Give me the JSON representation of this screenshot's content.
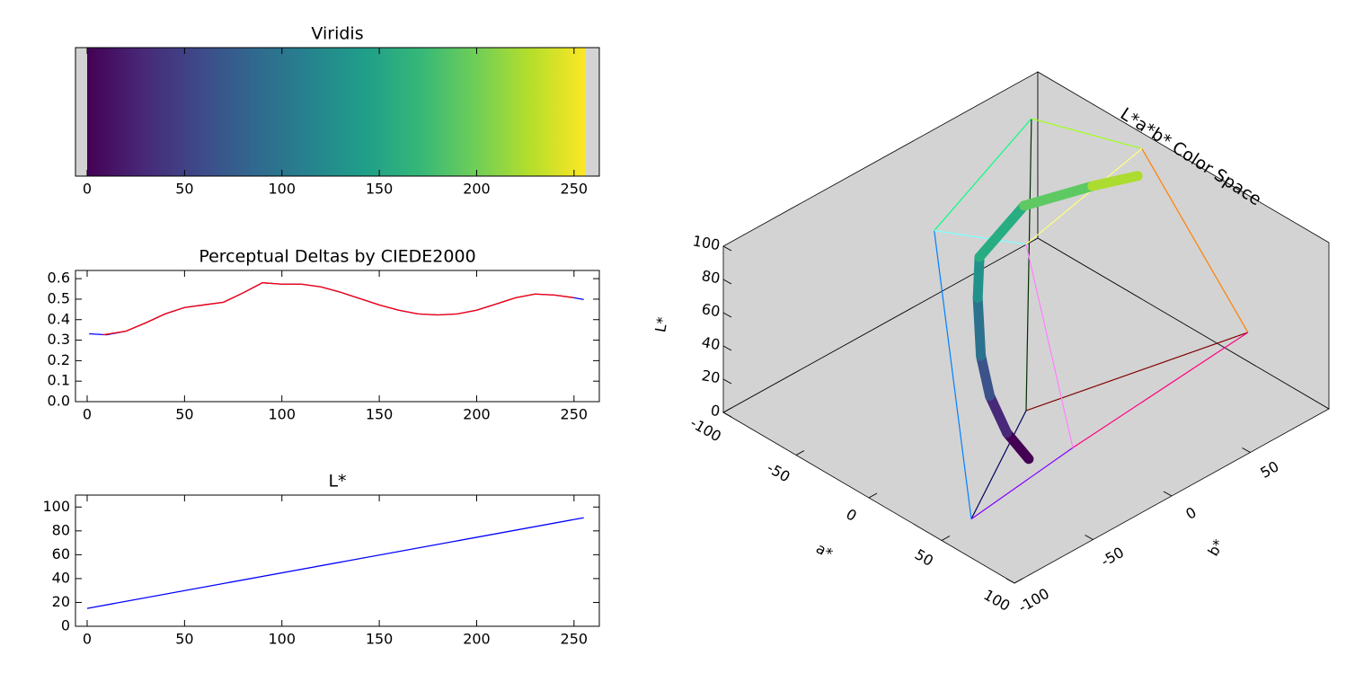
{
  "chart_data": [
    {
      "type": "colorbar",
      "title": "Viridis",
      "extent": [
        0,
        256
      ],
      "colors": [
        "#440154",
        "#482878",
        "#3e4989",
        "#31688e",
        "#26828e",
        "#1f9e89",
        "#35b779",
        "#6ece58",
        "#b5de2b",
        "#fde725"
      ],
      "xlim": [
        -6,
        263
      ],
      "xticks": [
        0,
        50,
        100,
        150,
        200,
        250
      ]
    },
    {
      "type": "line",
      "title": "Perceptual Deltas by CIEDE2000",
      "xlim": [
        -6,
        263
      ],
      "xticks": [
        0,
        50,
        100,
        150,
        200,
        250
      ],
      "ylim": [
        0,
        0.64
      ],
      "yticks": [
        {
          "value": 0,
          "label": "0.0"
        },
        0.1,
        0.2,
        0.3,
        0.4,
        0.5,
        0.6
      ],
      "series": [
        {
          "color": "#0000ff",
          "x": [
            1,
            10,
            20,
            30,
            40,
            50,
            60,
            70,
            80,
            90,
            100,
            110,
            120,
            130,
            140,
            150,
            160,
            170,
            180,
            190,
            200,
            210,
            220,
            230,
            240,
            250,
            255
          ],
          "values": [
            0.331,
            0.326,
            0.344,
            0.384,
            0.428,
            0.459,
            0.472,
            0.485,
            0.53,
            0.58,
            0.573,
            0.573,
            0.56,
            0.534,
            0.503,
            0.472,
            0.446,
            0.428,
            0.423,
            0.428,
            0.446,
            0.476,
            0.507,
            0.525,
            0.52,
            0.507,
            0.498
          ]
        },
        {
          "color": "#ff0000",
          "x": [
            8,
            20,
            30,
            40,
            50,
            60,
            70,
            80,
            90,
            100,
            110,
            120,
            130,
            140,
            150,
            160,
            170,
            180,
            190,
            200,
            210,
            220,
            230,
            240,
            250
          ],
          "values": [
            0.326,
            0.344,
            0.384,
            0.428,
            0.459,
            0.472,
            0.485,
            0.53,
            0.58,
            0.573,
            0.573,
            0.56,
            0.534,
            0.503,
            0.472,
            0.446,
            0.428,
            0.423,
            0.428,
            0.446,
            0.476,
            0.507,
            0.525,
            0.52,
            0.507
          ]
        }
      ]
    },
    {
      "type": "line",
      "title": "L*",
      "xlim": [
        -6,
        263
      ],
      "xticks": [
        0,
        50,
        100,
        150,
        200,
        250
      ],
      "ylim": [
        0,
        110
      ],
      "yticks": [
        0,
        20,
        40,
        60,
        80,
        100
      ],
      "series": [
        {
          "color": "#0000ff",
          "x": [
            0,
            255
          ],
          "values": [
            15,
            91
          ]
        }
      ]
    },
    {
      "type": "lab3d",
      "title": "L*a*b* Color Space",
      "xlabel": "a*",
      "ylabel": "b*",
      "zlabel": "L*",
      "xlim": [
        -100,
        100
      ],
      "ylim": [
        -100,
        100
      ],
      "zlim": [
        0,
        100
      ],
      "xticks": [
        -100,
        -50,
        0,
        50,
        100
      ],
      "yticks": [
        -100,
        -50,
        0,
        50
      ],
      "zticks": [
        0,
        20,
        40,
        60,
        80,
        100
      ],
      "curve": {
        "x": [
          45,
          30,
          15,
          -3,
          -30,
          -45,
          -50,
          -30,
          -13
        ],
        "y": [
          -40,
          -40,
          -37,
          -26,
          -3,
          12,
          45,
          70,
          83
        ],
        "z": [
          15,
          23,
          36,
          45,
          54,
          63,
          74,
          83,
          91
        ],
        "colors": [
          "#440154",
          "#482878",
          "#3b528b",
          "#2c728e",
          "#21918c",
          "#27ad81",
          "#5ec962",
          "#addc30",
          "#fde725"
        ]
      },
      "wireframe": [
        {
          "color": "#800000",
          "x": [
            0,
            80
          ],
          "y": [
            0,
            67
          ],
          "z": [
            0,
            53
          ]
        },
        {
          "color": "#003000",
          "x": [
            0,
            -86
          ],
          "y": [
            0,
            83
          ],
          "z": [
            0,
            88
          ]
        },
        {
          "color": "#000060",
          "x": [
            0,
            79
          ],
          "y": [
            0,
            -108
          ],
          "z": [
            0,
            32
          ]
        },
        {
          "color": "#ff8000",
          "x": [
            80,
            -22
          ],
          "y": [
            67,
            94
          ],
          "z": [
            53,
            97
          ]
        },
        {
          "color": "#ff0080",
          "x": [
            80,
            98
          ],
          "y": [
            67,
            -61
          ],
          "z": [
            53,
            60
          ]
        },
        {
          "color": "#a0ff20",
          "x": [
            -86,
            -22
          ],
          "y": [
            83,
            94
          ],
          "z": [
            88,
            97
          ]
        },
        {
          "color": "#00ff80",
          "x": [
            -86,
            -48
          ],
          "y": [
            83,
            -14
          ],
          "z": [
            88,
            91
          ]
        },
        {
          "color": "#0080ff",
          "x": [
            79,
            -48
          ],
          "y": [
            -108,
            -14
          ],
          "z": [
            32,
            91
          ]
        },
        {
          "color": "#8000ff",
          "x": [
            79,
            98
          ],
          "y": [
            -108,
            -61
          ],
          "z": [
            32,
            60
          ]
        },
        {
          "color": "#ffff80",
          "x": [
            -22,
            0
          ],
          "y": [
            94,
            0
          ],
          "z": [
            97,
            100
          ]
        },
        {
          "color": "#80ffff",
          "x": [
            -48,
            0
          ],
          "y": [
            -14,
            0
          ],
          "z": [
            91,
            100
          ]
        },
        {
          "color": "#ff80ff",
          "x": [
            98,
            0
          ],
          "y": [
            -61,
            0
          ],
          "z": [
            60,
            100
          ]
        }
      ]
    }
  ]
}
